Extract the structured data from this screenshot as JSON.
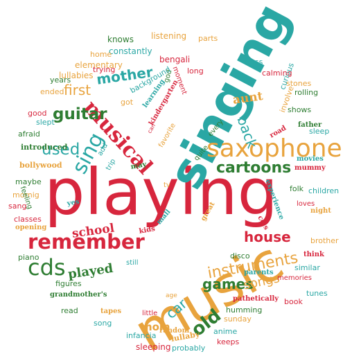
{
  "palette": {
    "red": "#d7263d",
    "orange": "#e8a33d",
    "green": "#2e7d32",
    "teal": "#2aa7a4"
  },
  "words": [
    {
      "text": "playing",
      "color": "red"
    },
    {
      "text": "singing",
      "color": "teal"
    },
    {
      "text": "music",
      "color": "orange"
    },
    {
      "text": "saxophone",
      "color": "orange"
    },
    {
      "text": "musical",
      "color": "red"
    },
    {
      "text": "remember",
      "color": "red"
    },
    {
      "text": "cds",
      "color": "green"
    },
    {
      "text": "cartoons",
      "color": "green"
    },
    {
      "text": "instruments",
      "color": "orange"
    },
    {
      "text": "sing",
      "color": "teal"
    },
    {
      "text": "mother",
      "color": "teal"
    },
    {
      "text": "guitar",
      "color": "green"
    },
    {
      "text": "used",
      "color": "teal"
    },
    {
      "text": "house",
      "color": "red"
    },
    {
      "text": "games",
      "color": "green"
    },
    {
      "text": "old",
      "color": "green"
    },
    {
      "text": "songs",
      "color": "orange"
    },
    {
      "text": "back",
      "color": "teal"
    },
    {
      "text": "first",
      "color": "orange"
    },
    {
      "text": "played",
      "color": "green"
    },
    {
      "text": "school",
      "color": "red"
    },
    {
      "text": "aunt",
      "color": "orange"
    },
    {
      "text": "car",
      "color": "teal"
    },
    {
      "text": "mom",
      "color": "orange"
    },
    {
      "text": "knows",
      "color": "green"
    },
    {
      "text": "listening",
      "color": "orange"
    },
    {
      "text": "parts",
      "color": "orange"
    },
    {
      "text": "bengali",
      "color": "red"
    },
    {
      "text": "constantly",
      "color": "teal"
    },
    {
      "text": "home",
      "color": "orange"
    },
    {
      "text": "elementary",
      "color": "orange"
    },
    {
      "text": "lullabies",
      "color": "orange"
    },
    {
      "text": "trying",
      "color": "red"
    },
    {
      "text": "years",
      "color": "green"
    },
    {
      "text": "ended",
      "color": "orange"
    },
    {
      "text": "good",
      "color": "red"
    },
    {
      "text": "slept",
      "color": "teal"
    },
    {
      "text": "afraid",
      "color": "green"
    },
    {
      "text": "introduced",
      "color": "green"
    },
    {
      "text": "bollywood",
      "color": "orange"
    },
    {
      "text": "maybe",
      "color": "green"
    },
    {
      "text": "mornig",
      "color": "orange"
    },
    {
      "text": "sang",
      "color": "red"
    },
    {
      "text": "classes",
      "color": "red"
    },
    {
      "text": "opening",
      "color": "orange"
    },
    {
      "text": "piano",
      "color": "green"
    },
    {
      "text": "figures",
      "color": "green"
    },
    {
      "text": "grandmother's",
      "color": "green"
    },
    {
      "text": "read",
      "color": "green"
    },
    {
      "text": "tapes",
      "color": "orange"
    },
    {
      "text": "song",
      "color": "teal"
    },
    {
      "text": "little",
      "color": "red"
    },
    {
      "text": "infancia",
      "color": "teal"
    },
    {
      "text": "sleeping",
      "color": "red"
    },
    {
      "text": "random",
      "color": "orange"
    },
    {
      "text": "lullaby",
      "color": "orange"
    },
    {
      "text": "probably",
      "color": "teal"
    },
    {
      "text": "keeps",
      "color": "red"
    },
    {
      "text": "anime",
      "color": "teal"
    },
    {
      "text": "sunday",
      "color": "orange"
    },
    {
      "text": "humming",
      "color": "green"
    },
    {
      "text": "book",
      "color": "red"
    },
    {
      "text": "pathetically",
      "color": "red"
    },
    {
      "text": "memories",
      "color": "red"
    },
    {
      "text": "parents",
      "color": "teal"
    },
    {
      "text": "tunes",
      "color": "teal"
    },
    {
      "text": "similar",
      "color": "teal"
    },
    {
      "text": "disco",
      "color": "green"
    },
    {
      "text": "think",
      "color": "red"
    },
    {
      "text": "brother",
      "color": "orange"
    },
    {
      "text": "night",
      "color": "orange"
    },
    {
      "text": "loves",
      "color": "red"
    },
    {
      "text": "cd's",
      "color": "red"
    },
    {
      "text": "folk",
      "color": "green"
    },
    {
      "text": "children",
      "color": "teal"
    },
    {
      "text": "experience",
      "color": "teal"
    },
    {
      "text": "movies",
      "color": "teal"
    },
    {
      "text": "mummy",
      "color": "red"
    },
    {
      "text": "father",
      "color": "green"
    },
    {
      "text": "sleep",
      "color": "teal"
    },
    {
      "text": "road",
      "color": "red"
    },
    {
      "text": "shows",
      "color": "green"
    },
    {
      "text": "involve",
      "color": "orange"
    },
    {
      "text": "curious",
      "color": "teal"
    },
    {
      "text": "rolling",
      "color": "green"
    },
    {
      "text": "stones",
      "color": "orange"
    },
    {
      "text": "calming",
      "color": "red"
    },
    {
      "text": "class",
      "color": "teal"
    },
    {
      "text": "long",
      "color": "red"
    },
    {
      "text": "moment",
      "color": "red"
    },
    {
      "text": "god",
      "color": "green"
    },
    {
      "text": "background",
      "color": "teal"
    },
    {
      "text": "learning",
      "color": "teal"
    },
    {
      "text": "kindergarten",
      "color": "red"
    },
    {
      "text": "can",
      "color": "red"
    },
    {
      "text": "favorite",
      "color": "orange"
    },
    {
      "text": "got",
      "color": "orange"
    },
    {
      "text": "every",
      "color": "green"
    },
    {
      "text": "quite",
      "color": "green"
    },
    {
      "text": "add",
      "color": "teal"
    },
    {
      "text": "trip",
      "color": "teal"
    },
    {
      "text": "may",
      "color": "green"
    },
    {
      "text": "tv",
      "color": "orange"
    },
    {
      "text": "feeling",
      "color": "green"
    },
    {
      "text": "yes",
      "color": "teal"
    },
    {
      "text": "great",
      "color": "orange"
    },
    {
      "text": "mall",
      "color": "teal"
    },
    {
      "text": "kids",
      "color": "red"
    },
    {
      "text": "still",
      "color": "teal"
    },
    {
      "text": "age",
      "color": "orange"
    }
  ]
}
